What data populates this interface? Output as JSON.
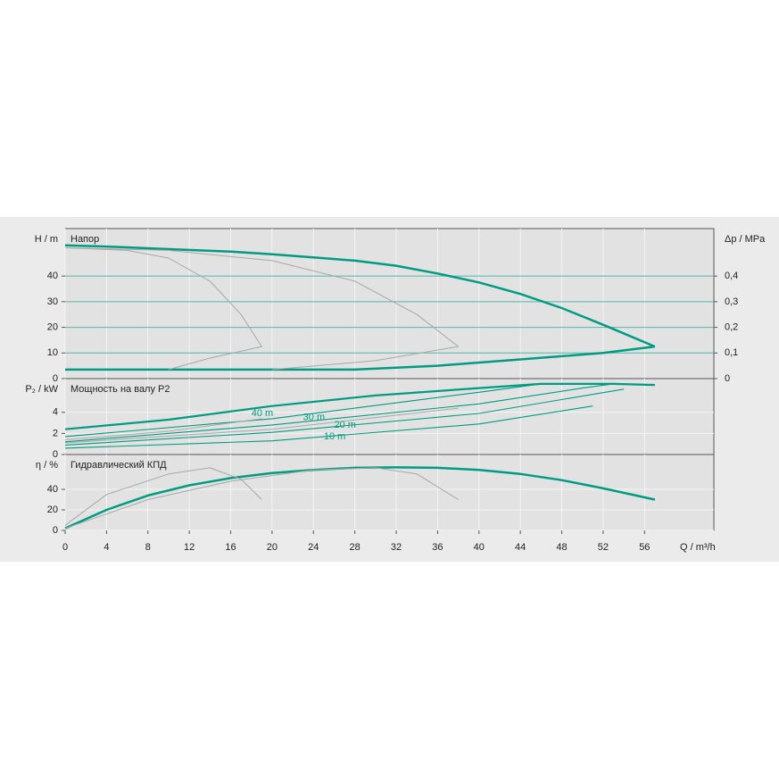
{
  "chart_data": [
    {
      "type": "line",
      "title": "Напор",
      "ylabel": "H / m",
      "y2label": "Δp / MPa",
      "xlim": [
        0,
        62.7
      ],
      "ylim": [
        0,
        58.5
      ],
      "yticks": [
        0,
        10,
        20,
        30,
        40
      ],
      "y2lim": [
        0,
        0.585
      ],
      "y2ticks": [
        {
          "value": 0,
          "label": "0"
        },
        {
          "value": 0.1,
          "label": "0,1"
        },
        {
          "value": 0.2,
          "label": "0,2"
        },
        {
          "value": 0.3,
          "label": "0,3"
        },
        {
          "value": 0.4,
          "label": "0,4"
        }
      ],
      "series": [
        {
          "color": "#009c82",
          "x": [
            0,
            4,
            10,
            16,
            20,
            28,
            32,
            36,
            40,
            44,
            48,
            52,
            57
          ],
          "values": [
            52,
            51.5,
            50.5,
            49.5,
            48.5,
            46,
            44,
            41,
            37.5,
            33,
            27.5,
            21,
            12.5
          ]
        },
        {
          "color": "#009c82",
          "x": [
            0,
            28,
            36,
            44,
            52,
            57
          ],
          "values": [
            3.5,
            3.5,
            5,
            7.5,
            10,
            12.5
          ]
        },
        {
          "color": "#a8a8a8",
          "x": [
            0,
            6,
            10,
            14,
            17,
            19,
            14,
            10
          ],
          "values": [
            51,
            50,
            47,
            38,
            25,
            12.5,
            8,
            3.5
          ]
        },
        {
          "color": "#a8a8a8",
          "x": [
            0,
            10,
            20,
            28,
            34,
            38,
            30,
            20
          ],
          "values": [
            51,
            50,
            46,
            38,
            25,
            12.5,
            7,
            3.5
          ]
        }
      ]
    },
    {
      "type": "line",
      "title": "Мощность на валу P2",
      "ylabel": "P₂ / kW",
      "xlim": [
        0,
        62.7
      ],
      "ylim": [
        0,
        7.2
      ],
      "yticks": [
        0,
        2,
        4
      ],
      "annotations": [
        "40 m",
        "30 m",
        "20 m",
        "10 m"
      ],
      "series": [
        {
          "color": "#009c82",
          "x": [
            0,
            10,
            20,
            30,
            40,
            46,
            53,
            57
          ],
          "values": [
            2.4,
            3.3,
            4.6,
            5.6,
            6.3,
            6.7,
            6.7,
            6.6
          ]
        },
        {
          "color": "#009c82",
          "x": [
            0,
            20,
            40,
            46
          ],
          "values": [
            1.7,
            3.4,
            5.9,
            6.7
          ]
        },
        {
          "color": "#009c82",
          "x": [
            0,
            20,
            40,
            50,
            53
          ],
          "values": [
            1.2,
            2.8,
            4.8,
            6.3,
            6.7
          ]
        },
        {
          "color": "#009c82",
          "x": [
            0,
            20,
            40,
            54
          ],
          "values": [
            0.9,
            2.1,
            3.9,
            6.2
          ]
        },
        {
          "color": "#009c82",
          "x": [
            0,
            20,
            40,
            51
          ],
          "values": [
            0.6,
            1.3,
            2.9,
            4.6
          ]
        },
        {
          "color": "#a8a8a8",
          "x": [
            0,
            10,
            19
          ],
          "values": [
            1.4,
            2.2,
            3.4
          ]
        },
        {
          "color": "#a8a8a8",
          "x": [
            0,
            20,
            38
          ],
          "values": [
            1.1,
            2.4,
            4.4
          ]
        }
      ]
    },
    {
      "type": "line",
      "title": "Гидравлический КПД",
      "ylabel": "η / %",
      "xlabel": "Q / m³/h",
      "xlim": [
        0,
        62.7
      ],
      "ylim": [
        0,
        74
      ],
      "yticks": [
        0,
        20,
        40
      ],
      "xticks": [
        0,
        4,
        8,
        12,
        16,
        20,
        24,
        28,
        32,
        36,
        40,
        44,
        48,
        52,
        56
      ],
      "series": [
        {
          "color": "#009c82",
          "x": [
            0,
            4,
            8,
            12,
            16,
            20,
            24,
            28,
            32,
            36,
            40,
            44,
            48,
            52,
            57
          ],
          "values": [
            2,
            20,
            34,
            44,
            51,
            56,
            59,
            61,
            61.5,
            61,
            59,
            55,
            49,
            41,
            30
          ]
        },
        {
          "color": "#a8a8a8",
          "x": [
            0,
            4,
            10,
            14,
            17,
            19
          ],
          "values": [
            5,
            35,
            55,
            61,
            50,
            30
          ]
        },
        {
          "color": "#a8a8a8",
          "x": [
            0,
            8,
            16,
            24,
            30,
            34,
            38
          ],
          "values": [
            2,
            30,
            48,
            59,
            61,
            55,
            30
          ]
        }
      ]
    }
  ]
}
